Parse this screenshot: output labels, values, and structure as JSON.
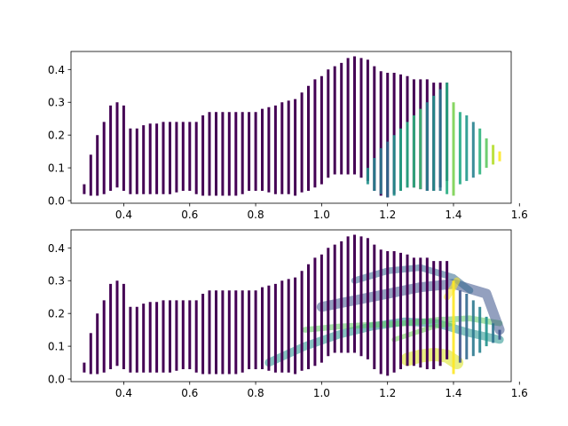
{
  "chart_data": [
    {
      "type": "line",
      "title": "",
      "xlabel": "",
      "ylabel": "",
      "xlim": [
        0.24,
        1.575
      ],
      "ylim": [
        -0.008,
        0.455
      ],
      "xticks": [
        "0.4",
        "0.6",
        "0.8",
        "1.0",
        "1.2",
        "1.4",
        "1.6"
      ],
      "yticks": [
        "0.0",
        "0.1",
        "0.2",
        "0.3",
        "0.4"
      ],
      "colormap": "viridis",
      "purple_segments": {
        "color": "#440154",
        "x": [
          0.28,
          0.3,
          0.32,
          0.34,
          0.36,
          0.38,
          0.4,
          0.42,
          0.44,
          0.46,
          0.48,
          0.5,
          0.52,
          0.54,
          0.56,
          0.58,
          0.6,
          0.62,
          0.64,
          0.66,
          0.68,
          0.7,
          0.72,
          0.74,
          0.76,
          0.78,
          0.8,
          0.82,
          0.84,
          0.86,
          0.88,
          0.9,
          0.92,
          0.94,
          0.96,
          0.98,
          1.0,
          1.02,
          1.04,
          1.06,
          1.08,
          1.1,
          1.12,
          1.14,
          1.16,
          1.18,
          1.2,
          1.22,
          1.24,
          1.26,
          1.28,
          1.3,
          1.32,
          1.34,
          1.36,
          1.38
        ],
        "y_low": [
          0.02,
          0.015,
          0.015,
          0.02,
          0.03,
          0.04,
          0.03,
          0.02,
          0.02,
          0.02,
          0.02,
          0.02,
          0.02,
          0.02,
          0.025,
          0.03,
          0.03,
          0.02,
          0.015,
          0.015,
          0.015,
          0.015,
          0.015,
          0.015,
          0.02,
          0.03,
          0.03,
          0.03,
          0.025,
          0.02,
          0.02,
          0.02,
          0.015,
          0.025,
          0.03,
          0.04,
          0.05,
          0.07,
          0.08,
          0.08,
          0.08,
          0.08,
          0.07,
          0.06,
          0.03,
          0.015,
          0.01,
          0.02,
          0.03,
          0.04,
          0.04,
          0.035,
          0.03,
          0.03,
          0.04,
          0.06
        ],
        "y_high": [
          0.05,
          0.14,
          0.2,
          0.24,
          0.29,
          0.3,
          0.29,
          0.22,
          0.22,
          0.23,
          0.235,
          0.235,
          0.24,
          0.24,
          0.24,
          0.24,
          0.24,
          0.24,
          0.26,
          0.27,
          0.27,
          0.27,
          0.27,
          0.27,
          0.27,
          0.27,
          0.27,
          0.28,
          0.285,
          0.29,
          0.3,
          0.305,
          0.31,
          0.33,
          0.35,
          0.37,
          0.38,
          0.4,
          0.41,
          0.42,
          0.435,
          0.44,
          0.435,
          0.43,
          0.41,
          0.395,
          0.39,
          0.39,
          0.385,
          0.38,
          0.37,
          0.37,
          0.37,
          0.36,
          0.36,
          0.36
        ]
      },
      "colored_segments": {
        "x": [
          1.14,
          1.16,
          1.18,
          1.2,
          1.22,
          1.24,
          1.26,
          1.28,
          1.3,
          1.32,
          1.34,
          1.36,
          1.38,
          1.4,
          1.42,
          1.44,
          1.46,
          1.48,
          1.5,
          1.52,
          1.54
        ],
        "y_low": [
          0.05,
          0.03,
          0.02,
          0.01,
          0.015,
          0.03,
          0.04,
          0.04,
          0.035,
          0.03,
          0.03,
          0.03,
          0.02,
          0.015,
          0.05,
          0.06,
          0.07,
          0.08,
          0.1,
          0.11,
          0.12
        ],
        "y_high": [
          0.1,
          0.13,
          0.16,
          0.18,
          0.2,
          0.22,
          0.24,
          0.26,
          0.28,
          0.3,
          0.32,
          0.34,
          0.36,
          0.3,
          0.27,
          0.26,
          0.24,
          0.22,
          0.19,
          0.17,
          0.15
        ],
        "colors": [
          "#21918c",
          "#26828e",
          "#2a788e",
          "#2f6c8e",
          "#21918c",
          "#22a884",
          "#27ad81",
          "#2db27d",
          "#3dbc74",
          "#26828e",
          "#21918c",
          "#2a788e",
          "#27ad81",
          "#7ad151",
          "#22a884",
          "#1f988b",
          "#26828e",
          "#2db27d",
          "#5ec962",
          "#b5de2b",
          "#fde725"
        ]
      }
    },
    {
      "type": "line",
      "title": "",
      "xlabel": "",
      "ylabel": "",
      "xlim": [
        0.24,
        1.575
      ],
      "ylim": [
        -0.008,
        0.455
      ],
      "xticks": [
        "0.4",
        "0.6",
        "0.8",
        "1.0",
        "1.2",
        "1.4",
        "1.6"
      ],
      "yticks": [
        "0.0",
        "0.1",
        "0.2",
        "0.3",
        "0.4"
      ],
      "colormap": "viridis",
      "purple_segments": {
        "color": "#440154",
        "x": [
          0.28,
          0.3,
          0.32,
          0.34,
          0.36,
          0.38,
          0.4,
          0.42,
          0.44,
          0.46,
          0.48,
          0.5,
          0.52,
          0.54,
          0.56,
          0.58,
          0.6,
          0.62,
          0.64,
          0.66,
          0.68,
          0.7,
          0.72,
          0.74,
          0.76,
          0.78,
          0.8,
          0.82,
          0.84,
          0.86,
          0.88,
          0.9,
          0.92,
          0.94,
          0.96,
          0.98,
          1.0,
          1.02,
          1.04,
          1.06,
          1.08,
          1.1,
          1.12,
          1.14,
          1.16,
          1.18,
          1.2,
          1.22,
          1.24,
          1.26,
          1.28,
          1.3,
          1.32,
          1.34,
          1.36,
          1.38
        ],
        "y_low": [
          0.02,
          0.015,
          0.015,
          0.02,
          0.03,
          0.04,
          0.03,
          0.02,
          0.02,
          0.02,
          0.02,
          0.02,
          0.02,
          0.02,
          0.025,
          0.03,
          0.03,
          0.02,
          0.015,
          0.015,
          0.015,
          0.015,
          0.015,
          0.015,
          0.02,
          0.03,
          0.03,
          0.03,
          0.025,
          0.02,
          0.02,
          0.02,
          0.015,
          0.025,
          0.03,
          0.04,
          0.05,
          0.07,
          0.08,
          0.08,
          0.08,
          0.08,
          0.07,
          0.06,
          0.03,
          0.015,
          0.01,
          0.02,
          0.03,
          0.04,
          0.04,
          0.035,
          0.03,
          0.03,
          0.04,
          0.06
        ],
        "y_high": [
          0.05,
          0.14,
          0.2,
          0.24,
          0.29,
          0.3,
          0.29,
          0.22,
          0.22,
          0.23,
          0.235,
          0.235,
          0.24,
          0.24,
          0.24,
          0.24,
          0.24,
          0.24,
          0.26,
          0.27,
          0.27,
          0.27,
          0.27,
          0.27,
          0.27,
          0.27,
          0.27,
          0.28,
          0.285,
          0.29,
          0.3,
          0.305,
          0.31,
          0.33,
          0.35,
          0.37,
          0.38,
          0.4,
          0.41,
          0.42,
          0.435,
          0.44,
          0.435,
          0.43,
          0.41,
          0.395,
          0.39,
          0.39,
          0.385,
          0.38,
          0.37,
          0.37,
          0.37,
          0.36,
          0.36,
          0.36
        ]
      },
      "colored_segments": {
        "x": [
          1.4,
          1.42,
          1.44,
          1.46,
          1.48,
          1.5,
          1.52,
          1.54
        ],
        "y_low": [
          0.015,
          0.05,
          0.06,
          0.07,
          0.08,
          0.1,
          0.11,
          0.12
        ],
        "y_high": [
          0.3,
          0.27,
          0.26,
          0.24,
          0.22,
          0.19,
          0.17,
          0.15
        ],
        "colors": [
          "#fde725",
          "#3b528b",
          "#31688e",
          "#2a788e",
          "#26828e",
          "#21918c",
          "#2c728e",
          "#3b528b"
        ]
      },
      "overlay_bands": [
        {
          "x": [
            0.84,
            0.95,
            1.05,
            1.15,
            1.25,
            1.35,
            1.45,
            1.54
          ],
          "y": [
            0.05,
            0.1,
            0.135,
            0.16,
            0.175,
            0.17,
            0.14,
            0.12
          ],
          "width": 0.025,
          "color": "#21918c"
        },
        {
          "x": [
            0.95,
            1.05,
            1.15,
            1.25,
            1.35,
            1.45,
            1.54
          ],
          "y": [
            0.15,
            0.16,
            0.165,
            0.17,
            0.18,
            0.185,
            0.17
          ],
          "width": 0.018,
          "color": "#5ec962"
        },
        {
          "x": [
            1.0,
            1.1,
            1.2,
            1.3,
            1.4,
            1.5,
            1.54
          ],
          "y": [
            0.22,
            0.24,
            0.26,
            0.28,
            0.29,
            0.26,
            0.15
          ],
          "width": 0.03,
          "color": "#3b528b"
        },
        {
          "x": [
            1.1,
            1.2,
            1.3,
            1.4,
            1.45
          ],
          "y": [
            0.3,
            0.33,
            0.34,
            0.31,
            0.27
          ],
          "width": 0.02,
          "color": "#31688e"
        },
        {
          "x": [
            1.22,
            1.28,
            1.34,
            1.4
          ],
          "y": [
            0.12,
            0.14,
            0.16,
            0.17
          ],
          "width": 0.015,
          "color": "#6ece58"
        },
        {
          "x": [
            1.26,
            1.3,
            1.34,
            1.38,
            1.41
          ],
          "y": [
            0.06,
            0.07,
            0.075,
            0.07,
            0.05
          ],
          "width": 0.04,
          "color": "#d8e219"
        },
        {
          "x": [
            1.38,
            1.4,
            1.41
          ],
          "y": [
            0.25,
            0.28,
            0.3
          ],
          "width": 0.02,
          "color": "#fde725"
        }
      ]
    }
  ]
}
